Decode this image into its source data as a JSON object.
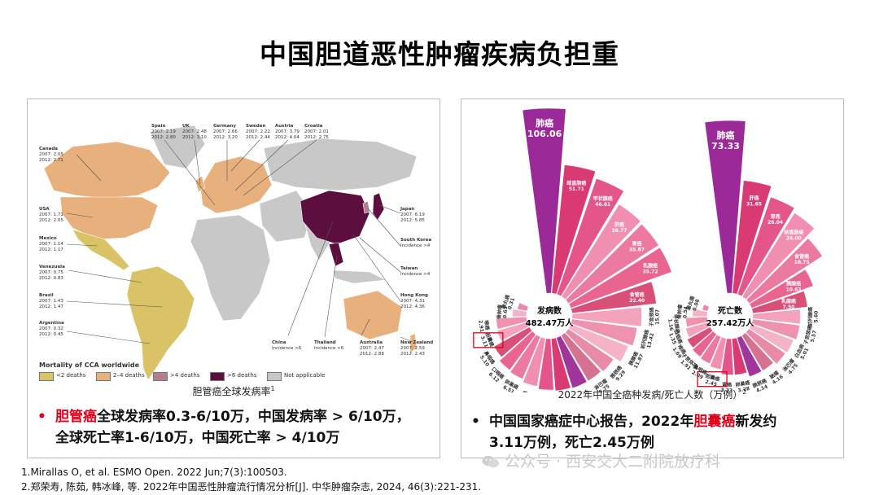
{
  "slide": {
    "title": "中国胆道恶性肿瘤疾病负担重"
  },
  "map": {
    "caption": "胆管癌全球发病率",
    "caption_ref": "1",
    "legend_title": "Mortality of CCA worldwide",
    "legend": [
      {
        "label": "<2 deaths",
        "color": "#d9c366"
      },
      {
        "label": "2–4 deaths",
        "color": "#e8b07c"
      },
      {
        "label": ">4 deaths",
        "color": "#b47e8f"
      },
      {
        "label": ">6 deaths",
        "color": "#5c0f3f"
      },
      {
        "label": "Not applicable",
        "color": "#c8c8c8"
      }
    ],
    "countries": [
      {
        "name": "Canada",
        "l1": "2007: 2.05",
        "l2": "2012: 2.71"
      },
      {
        "name": "USA",
        "l1": "2007: 1.71",
        "l2": "2012: 2.05"
      },
      {
        "name": "Mexico",
        "l1": "2007: 1.14",
        "l2": "2012: 1.17"
      },
      {
        "name": "Venezuela",
        "l1": "2007: 0.75",
        "l2": "2012: 0.83"
      },
      {
        "name": "Brazil",
        "l1": "2007: 1.43",
        "l2": "2012: 1.47"
      },
      {
        "name": "Argentina",
        "l1": "2007: 0.32",
        "l2": "2012: 0.45"
      },
      {
        "name": "Spain",
        "l1": "2007: 2.19",
        "l2": "2012: 2.80"
      },
      {
        "name": "UK",
        "l1": "2007: 2.48",
        "l2": "2012: 3.10"
      },
      {
        "name": "Germany",
        "l1": "2007: 2.66",
        "l2": "2012: 3.20"
      },
      {
        "name": "Sweden",
        "l1": "2007: 2.22",
        "l2": "2012: 2.44"
      },
      {
        "name": "Austria",
        "l1": "2007: 3.79",
        "l2": "2012: 4.04"
      },
      {
        "name": "Croatia",
        "l1": "2007: 2.01",
        "l2": "2012: 2.75"
      },
      {
        "name": "Japan",
        "l1": "2007: 6.19",
        "l2": "2012: 5.85"
      },
      {
        "name": "South Korea",
        "l1": "Incidence >4",
        "l2": ""
      },
      {
        "name": "Taiwan",
        "l1": "Incidence >4",
        "l2": ""
      },
      {
        "name": "Hong Kong",
        "l1": "2007: 4.31",
        "l2": "2012: 4.36"
      },
      {
        "name": "China",
        "l1": "Incidence >6",
        "l2": ""
      },
      {
        "name": "Thailand",
        "l1": "Incidence >6",
        "l2": ""
      },
      {
        "name": "Australia",
        "l1": "2007: 2.47",
        "l2": "2012: 2.88"
      },
      {
        "name": "New Zealand",
        "l1": "2007: 2.59",
        "l2": "2012: 2.43"
      }
    ]
  },
  "chart_data": [
    {
      "type": "bar",
      "polar": true,
      "title": "发病数",
      "center_label": "发病数",
      "center_value": "482.47万人",
      "categories": [
        "肺癌",
        "结直肠癌",
        "甲状腺癌",
        "肝癌",
        "胃癌",
        "乳腺癌",
        "食管癌",
        "子宫颈癌",
        "前列腺癌",
        "胰腺癌",
        "膀胱癌",
        "淋巴瘤",
        "脑瘤",
        "白血病",
        "子宫体癌",
        "肾癌",
        "卵巢癌",
        "口咽癌",
        "鼻咽癌",
        "胆囊癌",
        "喉癌",
        "骨肿瘤",
        "睾丸癌"
      ],
      "values": [
        106.06,
        51.71,
        46.61,
        36.77,
        35.87,
        35.72,
        22.4,
        15.07,
        13.42,
        11.87,
        9.29,
        8.75,
        8.75,
        8.52,
        8.19,
        7.37,
        6.51,
        6.12,
        5.1,
        3.11,
        2.91,
        0.63,
        0.31
      ],
      "highlight": "胆囊癌"
    },
    {
      "type": "bar",
      "polar": true,
      "title": "死亡数",
      "center_label": "死亡数",
      "center_value": "257.42万人",
      "categories": [
        "肺癌",
        "肝癌",
        "胃癌",
        "结直肠癌",
        "食管癌",
        "胰腺癌",
        "乳腺癌",
        "前列腺癌",
        "子宫颈癌",
        "白血病",
        "淋巴瘤",
        "脑瘤",
        "膀胱癌",
        "卵巢癌",
        "肾癌",
        "胆囊癌",
        "鼻咽癌",
        "子宫体癌",
        "喉癌",
        "口咽癌",
        "甲状腺癌",
        "骨肿瘤",
        "睾丸癌"
      ],
      "values": [
        73.33,
        31.65,
        26.04,
        24.0,
        18.75,
        10.63,
        7.5,
        5.6,
        5.57,
        5.01,
        4.75,
        4.16,
        4.14,
        3.28,
        3.23,
        2.45,
        2.09,
        1.91,
        1.69,
        1.35,
        1.16,
        0.54,
        0.08
      ],
      "highlight": "胆囊癌"
    }
  ],
  "chart_caption": "2022年中国全癌种发病/死亡人数（万例）",
  "chart_caption_ref": "2",
  "bullets": {
    "left_part1_red": "胆管癌",
    "left_part1_rest": "全球发病率0.3-6/10万，中国发病率 > 6/10万，",
    "left_part2": "全球死亡率1-6/10万，中国死亡率 > 4/10万",
    "right_part1_a": "中国国家癌症中心报告，2022年",
    "right_part1_red": "胆囊癌",
    "right_part1_b": "新发约",
    "right_part2": "3.11万例，死亡2.45万例"
  },
  "references": {
    "r1": "1.Mirallas O, et al. ESMO Open. 2022 Jun;7(3):100503.",
    "r2": "2.郑荣寿, 陈茹, 韩冰峰, 等. 2022年中国恶性肿瘤流行情况分析[J]. 中华肿瘤杂志, 2024, 46(3):221-231."
  },
  "watermark": "公众号 · 西安交大二附院放疗科",
  "colors": {
    "accent_red": "#e1001a",
    "rose_dark": "#8e1f8e",
    "rose_mid": "#d6336c",
    "rose_light": "#f08fae"
  }
}
